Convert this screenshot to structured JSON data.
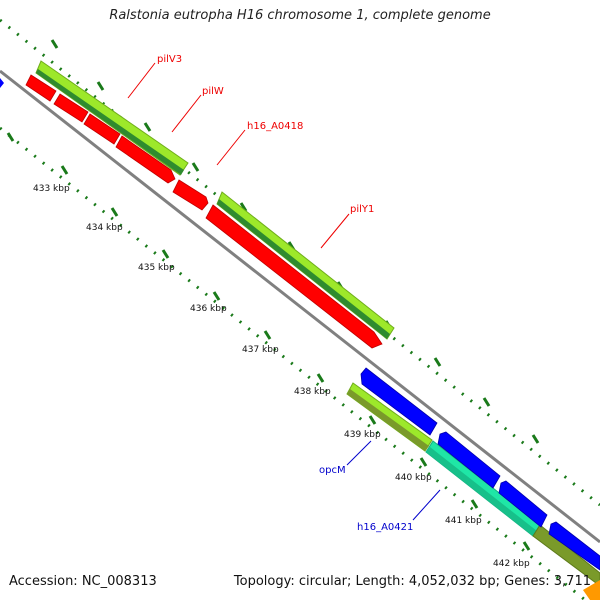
{
  "title": "Ralstonia eutropha H16 chromosome 1, complete genome",
  "footer": {
    "accession": "Accession: NC_008313",
    "summary": "Topology: circular; Length: 4,052,032 bp; Genes: 3,711"
  },
  "colors": {
    "backbone": "#808080",
    "forward_gene": "#ff0000",
    "reverse_gene": "#0000ff",
    "cds_light": "#9de82a",
    "cds_dark": "#2f8b2f",
    "cds_teal": "#1fe6a6",
    "cds_olive": "#7a9a2a",
    "tick": "#1a7a1a",
    "forward_label": "#ee0000",
    "reverse_label": "#0000cc"
  },
  "ticks": [
    "433 kbp",
    "434 kbp",
    "435 kbp",
    "436 kbp",
    "437 kbp",
    "438 kbp",
    "439 kbp",
    "440 kbp",
    "441 kbp",
    "442 kbp"
  ],
  "gene_labels": {
    "pilV3": "pilV3",
    "pilW": "pilW",
    "h16_A0418": "h16_A0418",
    "pilY1": "pilY1",
    "opcM": "opcM",
    "h16_A0421": "h16_A0421"
  }
}
